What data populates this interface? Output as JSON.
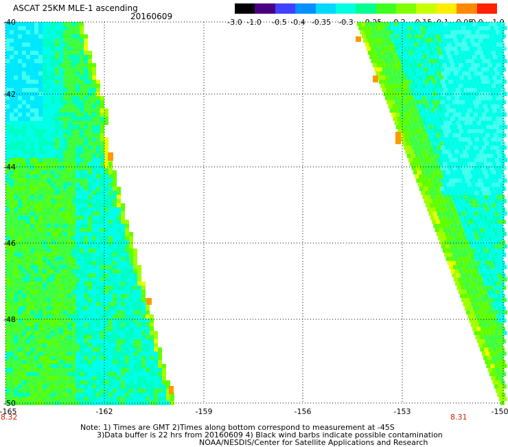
{
  "header": {
    "title": "ASCAT 25KM MLE-1 ascending",
    "date": "20160609"
  },
  "colorbar": {
    "labels": [
      "-3.0",
      "-1.0",
      "-0.5",
      "-0.4",
      "-0.35",
      "-0.3",
      "-0.25",
      "-0.2",
      "-0.15",
      "-0.1",
      "-0.05",
      "0.0",
      "1.0"
    ],
    "colors": [
      "#000000",
      "#4b0082",
      "#4040ff",
      "#0090ff",
      "#00d8ff",
      "#00ffe0",
      "#00ff90",
      "#40ff20",
      "#80ff00",
      "#c8ff00",
      "#ffee00",
      "#ff8800",
      "#ff2000"
    ]
  },
  "map": {
    "lon_range": [
      -165,
      -150
    ],
    "lat_range": [
      -50,
      -40
    ],
    "y_labels": [
      "-40",
      "-42",
      "-44",
      "-46",
      "-48",
      "-50"
    ],
    "x_labels": [
      "-165",
      "-162",
      "-159",
      "-156",
      "-153",
      "-150"
    ],
    "colors": {
      "cyan": "#00ffe8",
      "lightcyan": "#40fff0",
      "skyblue": "#00e8ff",
      "aqua": "#00ffc0",
      "green": "#40ff40",
      "lime": "#60ff00",
      "yellowgreen": "#a0ff00",
      "yellow": "#e8ff00",
      "orange": "#ff9900"
    }
  },
  "rev_labels": {
    "left": "8.32",
    "right": "8.31"
  },
  "notes": {
    "line1": "Note: 1) Times are GMT 2)Times along bottom correspond to measurement at -45S",
    "line2": "3)Data buffer is 22 hrs from 20160609 4) Black wind barbs indicate possible contamination",
    "line3": "NOAA/NESDIS/Center for Satellite Applications and Research"
  }
}
